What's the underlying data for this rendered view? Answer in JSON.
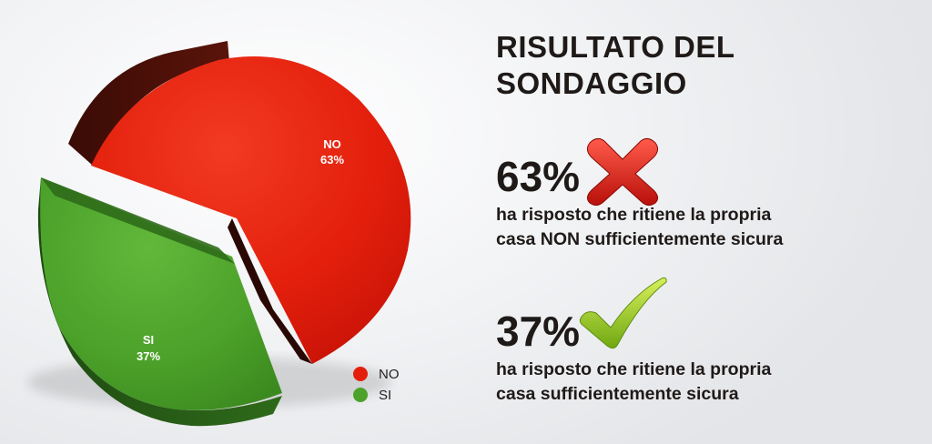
{
  "chart_data": {
    "type": "pie",
    "title": "",
    "series": [
      {
        "name": "NO",
        "value": 63,
        "label": "NO",
        "value_label": "63%",
        "color": "#e31f0c"
      },
      {
        "name": "SI",
        "value": 37,
        "label": "SI",
        "value_label": "37%",
        "color": "#4ca22a"
      }
    ],
    "legend": {
      "position": "bottom-right",
      "items": [
        {
          "label": "NO",
          "color": "#e31f0c"
        },
        {
          "label": "SI",
          "color": "#4ca22a"
        }
      ]
    },
    "style": "3d-exploded"
  },
  "panel": {
    "title_line1": "RISULTATO DEL",
    "title_line2": "SONDAGGIO",
    "stats": [
      {
        "value": "63%",
        "icon": "red-cross-icon",
        "line1": "ha risposto che ritiene la propria",
        "line2": "casa NON sufficientemente sicura"
      },
      {
        "value": "37%",
        "icon": "green-check-icon",
        "line1": "ha risposto che ritiene la propria",
        "line2": "casa sufficientemente sicura"
      }
    ]
  }
}
